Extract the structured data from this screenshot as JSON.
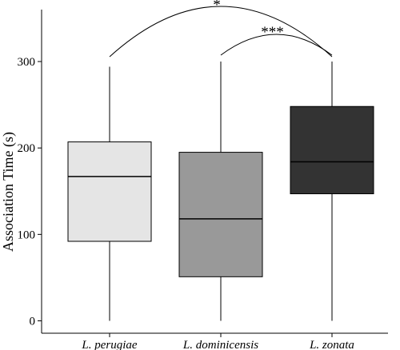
{
  "chart_data": {
    "type": "boxplot",
    "ylabel": "Association Time (s)",
    "xlabel": "",
    "ylim": [
      -5,
      335
    ],
    "yticks": [
      0,
      100,
      200,
      300
    ],
    "grid": false,
    "categories": [
      "L. perugiae",
      "L. dominicensis",
      "L. zonata"
    ],
    "boxes": [
      {
        "name": "L. perugiae",
        "min": 0,
        "q1": 92,
        "median": 167,
        "q3": 207,
        "max": 294,
        "color": "#e5e5e5"
      },
      {
        "name": "L. dominicensis",
        "min": 0,
        "q1": 51,
        "median": 118,
        "q3": 195,
        "max": 300,
        "color": "#999999"
      },
      {
        "name": "L. zonata",
        "min": 0,
        "q1": 147,
        "median": 184,
        "q3": 248,
        "max": 300,
        "color": "#333333"
      }
    ],
    "significance": [
      {
        "from": "L. perugiae",
        "to": "L. zonata",
        "label": "*"
      },
      {
        "from": "L. dominicensis",
        "to": "L. zonata",
        "label": "***"
      }
    ]
  }
}
